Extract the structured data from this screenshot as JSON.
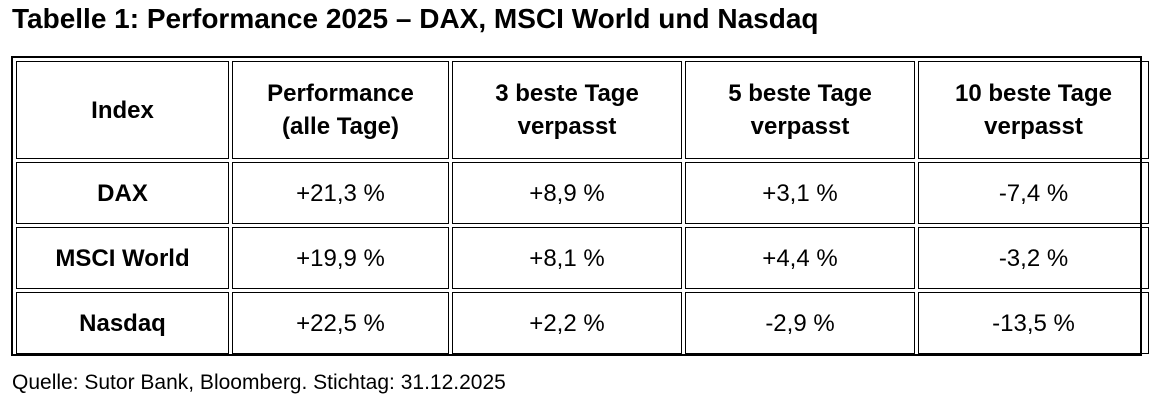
{
  "title": "Tabelle 1: Performance 2025 – DAX, MSCI World und Nasdaq",
  "table": {
    "headers": [
      {
        "line1": "Index",
        "line2": ""
      },
      {
        "line1": "Performance",
        "line2": "(alle Tage)"
      },
      {
        "line1": "3 beste Tage",
        "line2": "verpasst"
      },
      {
        "line1": "5 beste Tage",
        "line2": "verpasst"
      },
      {
        "line1": "10 beste Tage",
        "line2": "verpasst"
      }
    ],
    "rows": [
      {
        "index": "DAX",
        "all_days": "+21,3 %",
        "best3": "+8,9 %",
        "best5": "+3,1 %",
        "best10": "-7,4 %"
      },
      {
        "index": "MSCI World",
        "all_days": "+19,9 %",
        "best3": "+8,1 %",
        "best5": "+4,4 %",
        "best10": "-3,2 %"
      },
      {
        "index": "Nasdaq",
        "all_days": "+22,5 %",
        "best3": "+2,2 %",
        "best5": "-2,9 %",
        "best10": "-13,5 %"
      }
    ]
  },
  "source": "Quelle: Sutor Bank, Bloomberg. Stichtag: 31.12.2025"
}
